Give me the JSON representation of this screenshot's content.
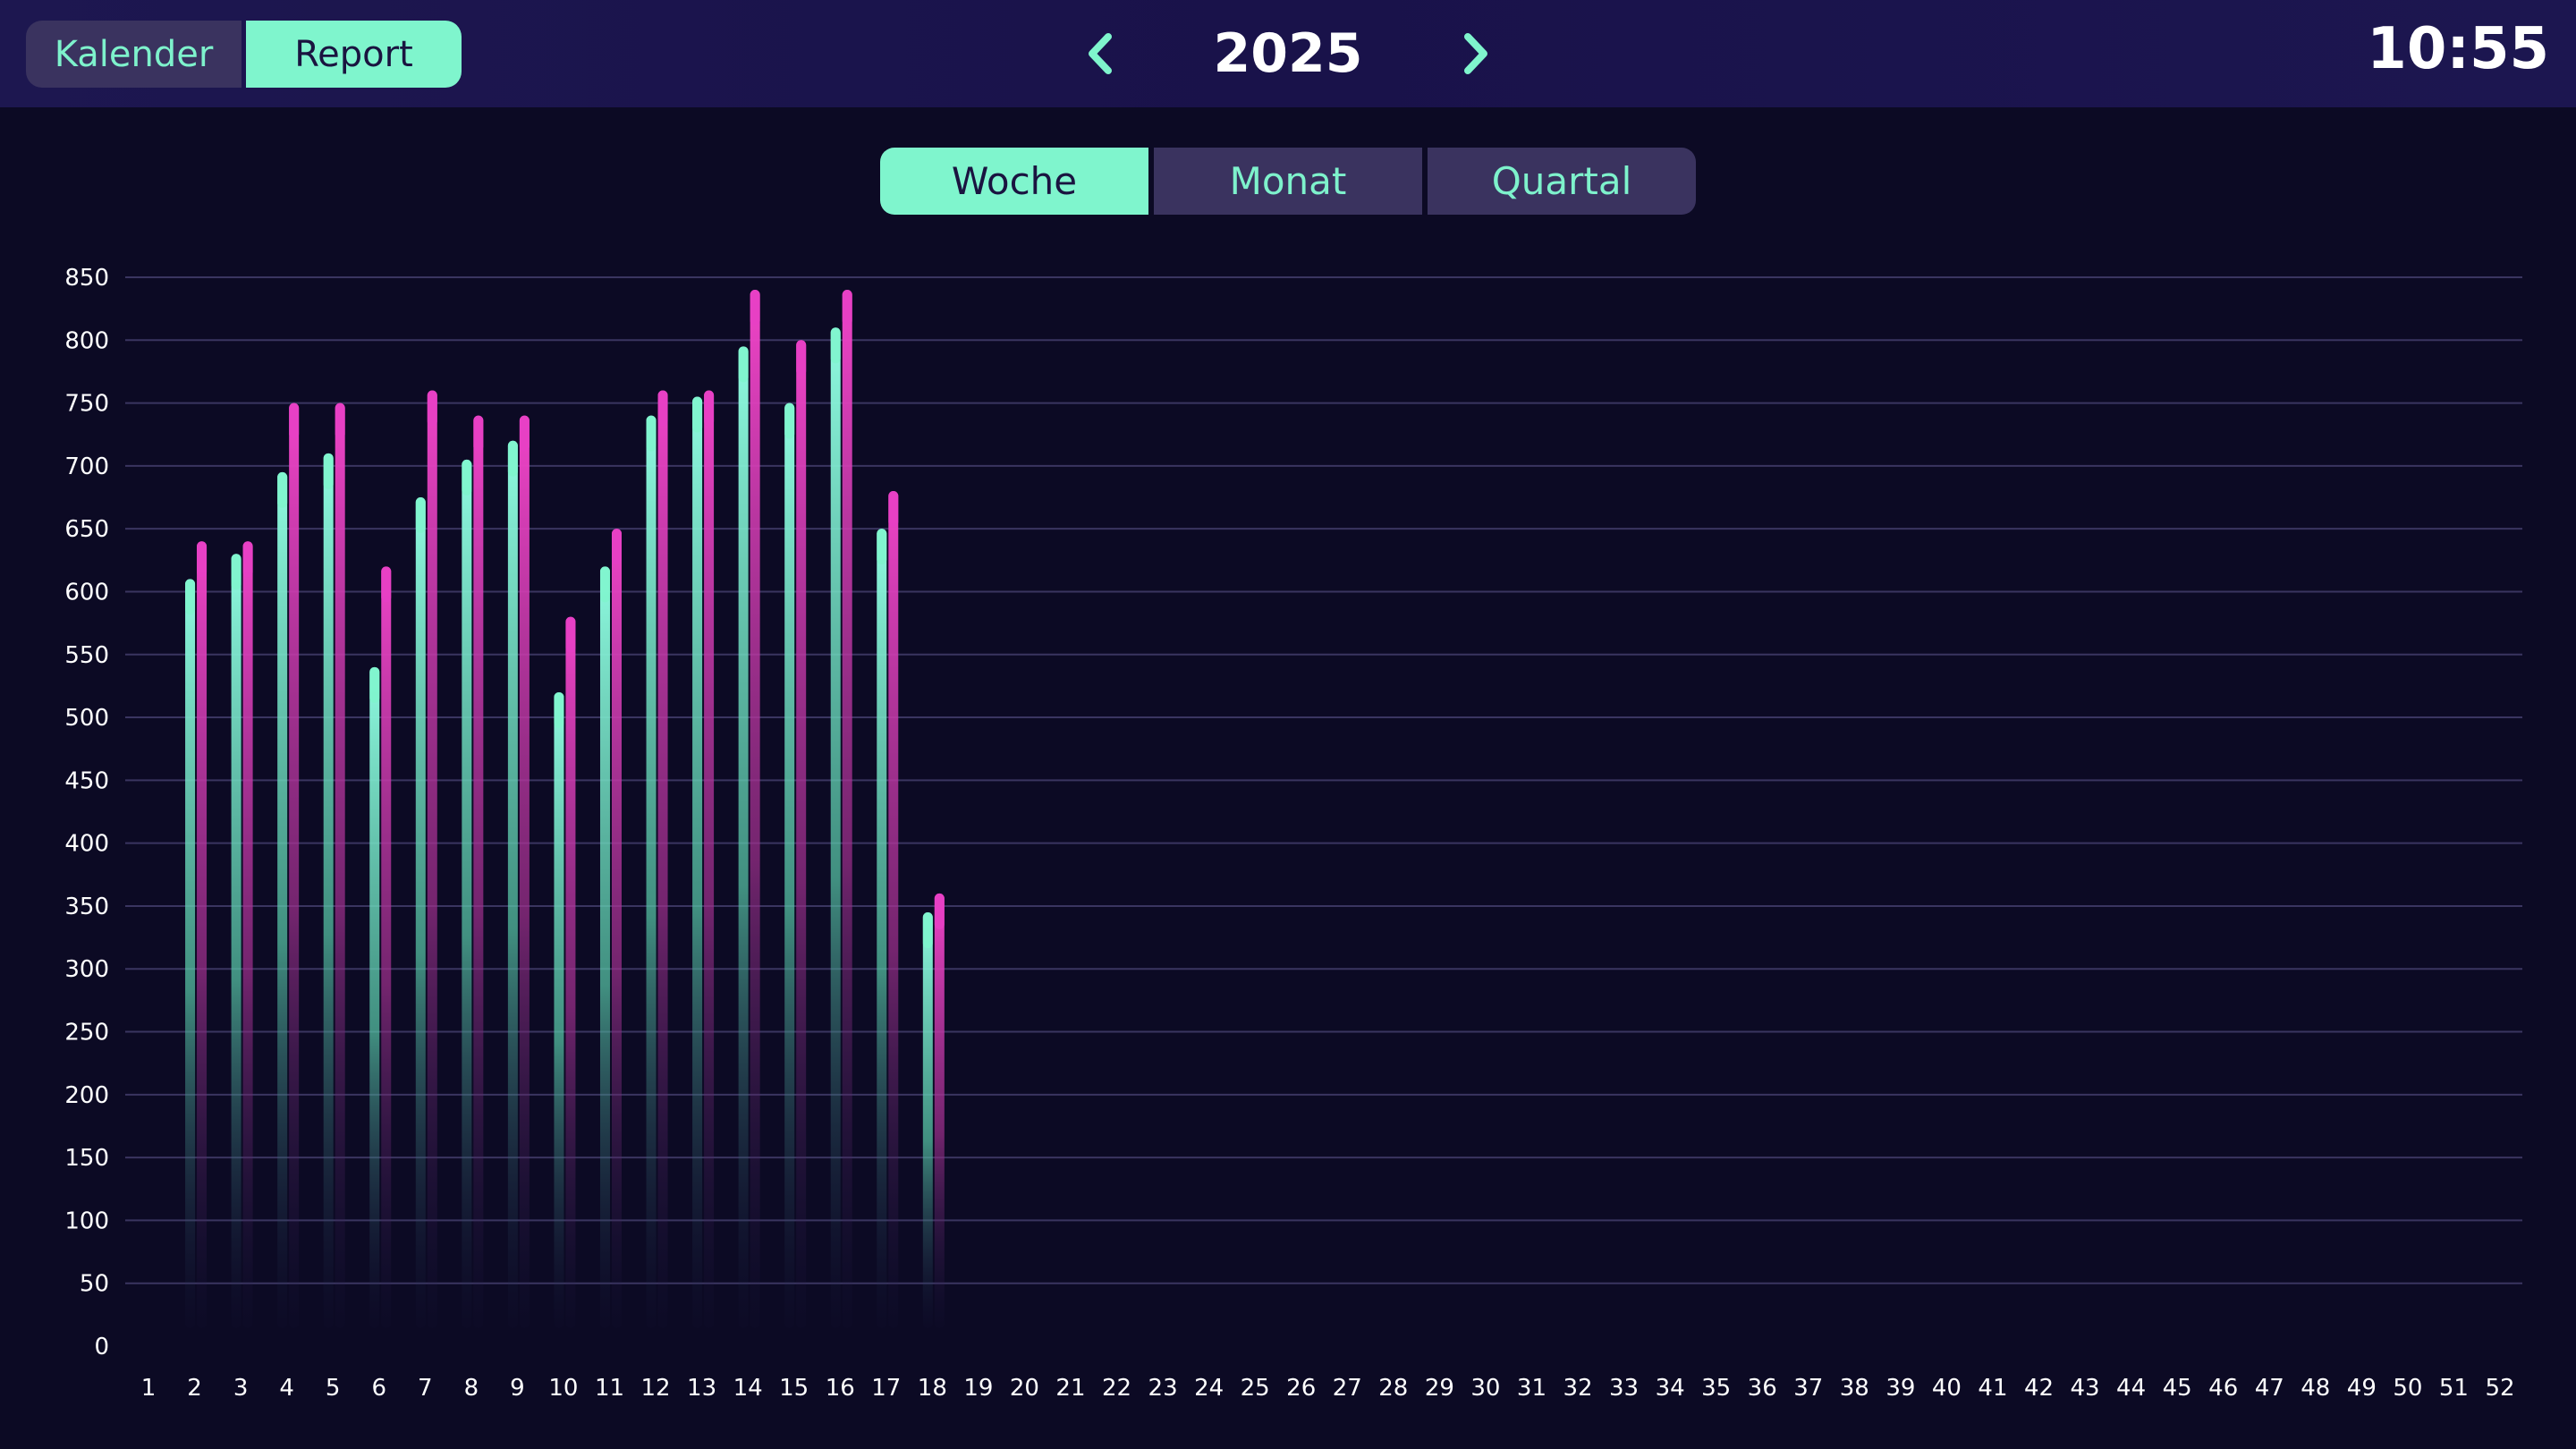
{
  "header": {
    "tabs": [
      {
        "label": "Kalender",
        "active": false
      },
      {
        "label": "Report",
        "active": true
      }
    ],
    "year": "2025",
    "clock": "10:55",
    "prev_icon": "chevron-left-icon",
    "next_icon": "chevron-right-icon"
  },
  "period_tabs": [
    {
      "label": "Woche",
      "active": true
    },
    {
      "label": "Monat",
      "active": false
    },
    {
      "label": "Quartal",
      "active": false
    }
  ],
  "colors": {
    "accent": "#7ff5cd",
    "series_a": "#7ff5cd",
    "series_b": "#e63fc4",
    "background": "#0c0a24",
    "grid": "#3a3560"
  },
  "chart_data": {
    "type": "bar",
    "title": "",
    "xlabel": "",
    "ylabel": "",
    "ylim": [
      0,
      850
    ],
    "y_ticks": [
      0,
      50,
      100,
      150,
      200,
      250,
      300,
      350,
      400,
      450,
      500,
      550,
      600,
      650,
      700,
      750,
      800,
      850
    ],
    "grid": true,
    "categories": [
      "1",
      "2",
      "3",
      "4",
      "5",
      "6",
      "7",
      "8",
      "9",
      "10",
      "11",
      "12",
      "13",
      "14",
      "15",
      "16",
      "17",
      "18",
      "19",
      "20",
      "21",
      "22",
      "23",
      "24",
      "25",
      "26",
      "27",
      "28",
      "29",
      "30",
      "31",
      "32",
      "33",
      "34",
      "35",
      "36",
      "37",
      "38",
      "39",
      "40",
      "41",
      "42",
      "43",
      "44",
      "45",
      "46",
      "47",
      "48",
      "49",
      "50",
      "51",
      "52"
    ],
    "series": [
      {
        "values": [
          null,
          610,
          630,
          695,
          710,
          540,
          675,
          705,
          720,
          520,
          620,
          740,
          755,
          795,
          750,
          810,
          650,
          345,
          null,
          null,
          null,
          null,
          null,
          null,
          null,
          null,
          null,
          null,
          null,
          null,
          null,
          null,
          null,
          null,
          null,
          null,
          null,
          null,
          null,
          null,
          null,
          null,
          null,
          null,
          null,
          null,
          null,
          null,
          null,
          null,
          null,
          null
        ]
      },
      {
        "values": [
          null,
          640,
          640,
          750,
          750,
          620,
          760,
          740,
          740,
          580,
          650,
          760,
          760,
          840,
          800,
          840,
          680,
          360,
          null,
          null,
          null,
          null,
          null,
          null,
          null,
          null,
          null,
          null,
          null,
          null,
          null,
          null,
          null,
          null,
          null,
          null,
          null,
          null,
          null,
          null,
          null,
          null,
          null,
          null,
          null,
          null,
          null,
          null,
          null,
          null,
          null,
          null
        ]
      }
    ]
  }
}
